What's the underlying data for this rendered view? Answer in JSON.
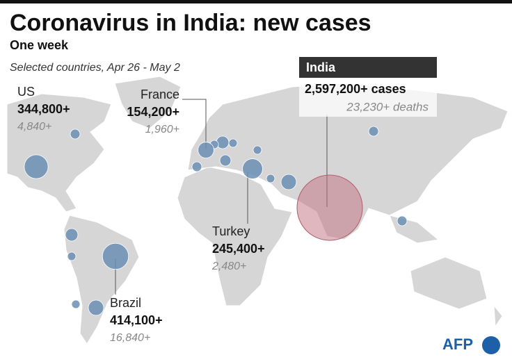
{
  "header": {
    "title": "Coronavirus in India: new cases",
    "subtitle": "One week",
    "note": "Selected countries, Apr 26 - May 2"
  },
  "countries": [
    {
      "name": "US",
      "cases": {
        "value": 344800,
        "label": "344,800+"
      },
      "deaths": {
        "value": 4840,
        "label": "4,840+"
      }
    },
    {
      "name": "France",
      "cases": {
        "value": 154200,
        "label": "154,200+"
      },
      "deaths": {
        "value": 1960,
        "label": "1,960+"
      }
    },
    {
      "name": "Turkey",
      "cases": {
        "value": 245400,
        "label": "245,400+"
      },
      "deaths": {
        "value": 2480,
        "label": "2,480+"
      }
    },
    {
      "name": "Brazil",
      "cases": {
        "value": 414100,
        "label": "414,100+"
      },
      "deaths": {
        "value": 16840,
        "label": "16,840+"
      }
    }
  ],
  "india": {
    "name": "India",
    "cases": {
      "value": 2597200,
      "label": "2,597,200+ cases"
    },
    "deaths": {
      "value": 23230,
      "label": "23,230+ deaths"
    }
  },
  "source": "AFP"
}
